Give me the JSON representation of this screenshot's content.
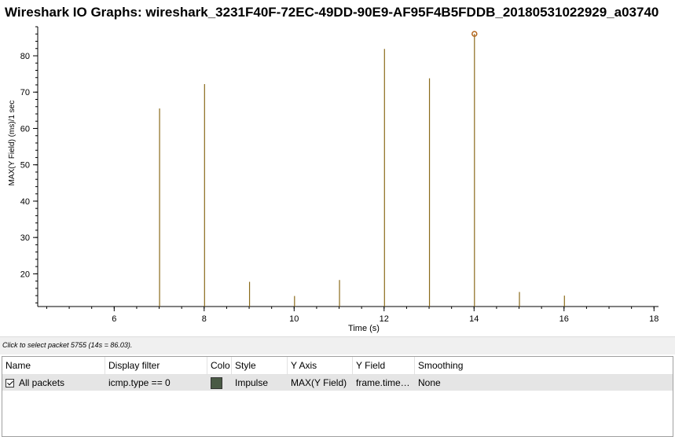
{
  "window": {
    "title": "Wireshark IO Graphs: wireshark_3231F40F-72EC-49DD-90E9-AF95F4B5FDDB_20180531022929_a03740"
  },
  "status": {
    "hint": "Click to select packet 5755 (14s = 86.03)."
  },
  "table": {
    "columns": [
      "Name",
      "Display filter",
      "Colo",
      "Style",
      "Y Axis",
      "Y Field",
      "Smoothing"
    ],
    "rows": [
      {
        "enabled": true,
        "name": "All packets",
        "display_filter": "icmp.type == 0",
        "color": "#4a5a45",
        "style": "Impulse",
        "y_axis": "MAX(Y Field)",
        "y_field": "frame.time…",
        "smoothing": "None"
      }
    ]
  },
  "chart_data": {
    "type": "bar",
    "style": "impulse",
    "xlabel": "Time (s)",
    "ylabel": "MAX(Y Field) (ms)/1 sec",
    "xlim": [
      4.3,
      18.1
    ],
    "ylim": [
      11,
      88
    ],
    "x_ticks": [
      "6",
      "8",
      "10",
      "12",
      "14",
      "16",
      "18"
    ],
    "y_ticks": [
      "20",
      "30",
      "40",
      "50",
      "60",
      "70",
      "80"
    ],
    "grid": false,
    "series": [
      {
        "color": "#8a6a1a",
        "x": [
          7,
          8,
          9,
          10,
          11,
          12,
          13,
          14,
          15,
          16
        ],
        "values": [
          65.5,
          72.2,
          17.8,
          13.9,
          18.3,
          81.9,
          73.8,
          86.03,
          15.0,
          14.0
        ]
      }
    ],
    "selected_point": {
      "x": 14,
      "y": 86.03
    }
  }
}
